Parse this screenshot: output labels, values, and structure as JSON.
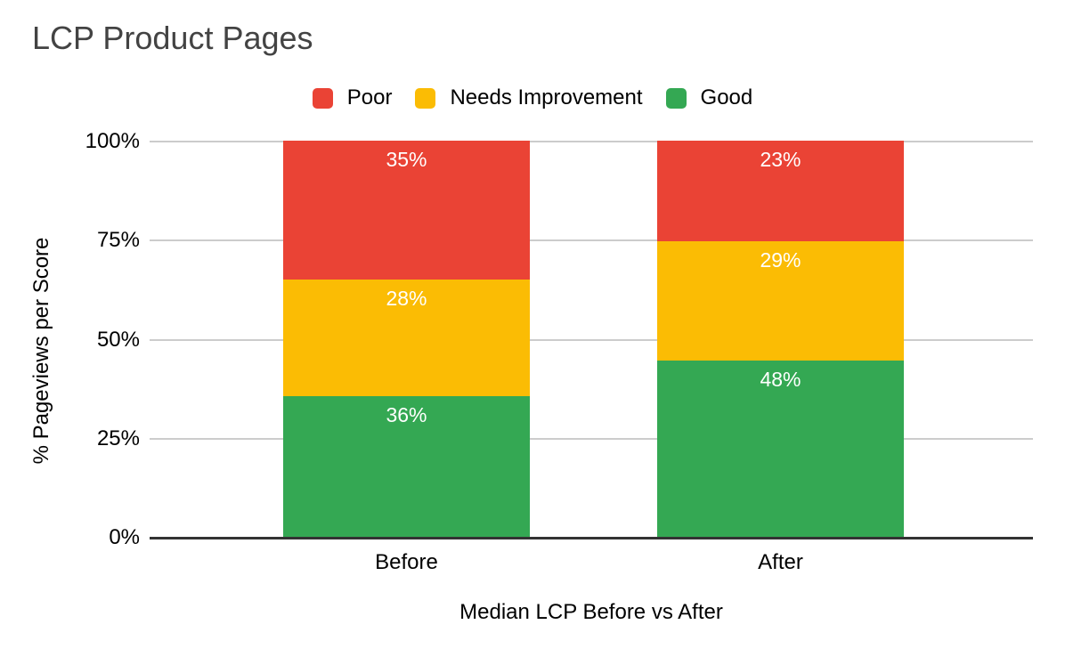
{
  "chart_data": {
    "type": "bar",
    "variant": "stacked-column-100",
    "title": "LCP Product Pages",
    "categories": [
      "Before",
      "After"
    ],
    "series": [
      {
        "name": "Poor",
        "color": "#EA4335",
        "values": [
          35,
          23
        ]
      },
      {
        "name": "Needs Improvement",
        "color": "#FBBC04",
        "values": [
          28,
          29
        ]
      },
      {
        "name": "Good",
        "color": "#34A853",
        "values": [
          36,
          48
        ]
      }
    ],
    "stack_order_top_to_bottom": [
      "Poor",
      "Needs Improvement",
      "Good"
    ],
    "data_label_format": "{value}%",
    "data_label_color": "#ffffff",
    "xlabel": "Median LCP Before vs After",
    "ylabel": "% Pageviews per Score",
    "yticks": [
      {
        "label": "0%",
        "value": 0
      },
      {
        "label": "25%",
        "value": 25
      },
      {
        "label": "50%",
        "value": 50
      },
      {
        "label": "75%",
        "value": 75
      },
      {
        "label": "100%",
        "value": 100
      }
    ],
    "ylim": [
      0,
      100
    ],
    "grid": true,
    "legend_position": "top",
    "colors": {
      "title_text": "#434343",
      "axis_text": "#000000",
      "gridline": "#cccccc",
      "axis_line": "#333333",
      "background": "#ffffff"
    }
  }
}
